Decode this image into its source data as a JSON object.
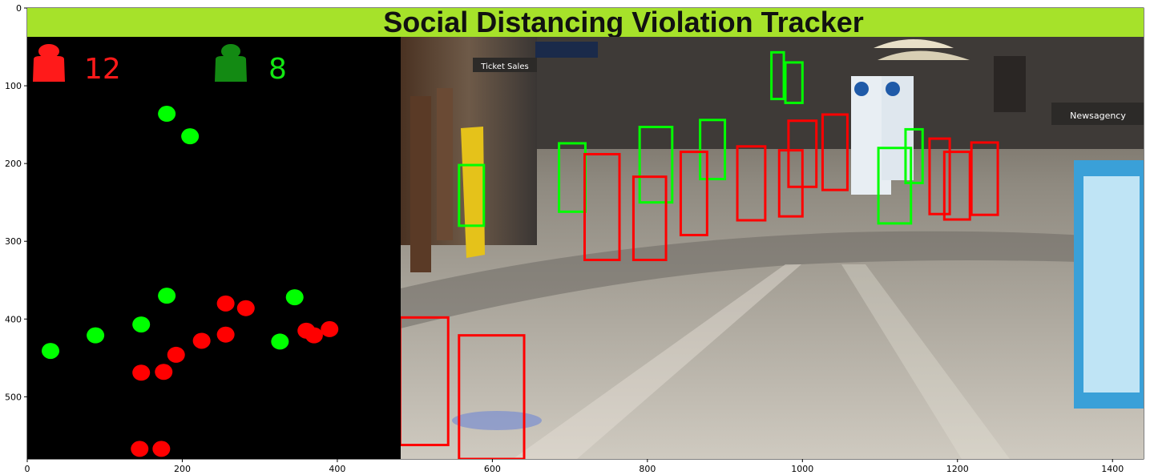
{
  "banner": {
    "title": "Social Distancing Violation Tracker",
    "color": "#a6e22a"
  },
  "counters": {
    "violations": {
      "value": "12",
      "color": "#ff1a1a",
      "icon": "person-red-icon"
    },
    "safe": {
      "value": "8",
      "color": "#13e713",
      "icon": "person-green-icon",
      "icon_color": "#138a13"
    }
  },
  "colors": {
    "violation": "#ff0000",
    "safe": "#00ff00",
    "map_bg": "#000000"
  },
  "axes": {
    "x_ticks": [
      "0",
      "200",
      "400",
      "600",
      "800",
      "1000",
      "1200",
      "1400"
    ],
    "y_ticks": [
      "0",
      "100",
      "200",
      "300",
      "400",
      "500"
    ]
  },
  "map_points": {
    "safe": [
      [
        180,
        136
      ],
      [
        210,
        165
      ],
      [
        180,
        370
      ],
      [
        345,
        372
      ],
      [
        147,
        407
      ],
      [
        88,
        421
      ],
      [
        30,
        441
      ],
      [
        326,
        429
      ]
    ],
    "violation": [
      [
        256,
        380
      ],
      [
        282,
        386
      ],
      [
        360,
        415
      ],
      [
        370,
        421
      ],
      [
        390,
        413
      ],
      [
        256,
        420
      ],
      [
        225,
        428
      ],
      [
        192,
        446
      ],
      [
        147,
        469
      ],
      [
        176,
        468
      ],
      [
        145,
        567
      ],
      [
        173,
        567
      ]
    ]
  },
  "detections": {
    "safe": [
      [
        557,
        202,
        589,
        280
      ],
      [
        686,
        174,
        720,
        262
      ],
      [
        790,
        153,
        832,
        250
      ],
      [
        868,
        144,
        900,
        220
      ],
      [
        960,
        57,
        976,
        117
      ],
      [
        978,
        70,
        1000,
        122
      ],
      [
        1098,
        180,
        1140,
        277
      ],
      [
        1133,
        156,
        1155,
        225
      ]
    ],
    "violation": [
      [
        719,
        188,
        764,
        324
      ],
      [
        782,
        217,
        824,
        324
      ],
      [
        843,
        185,
        877,
        292
      ],
      [
        916,
        178,
        952,
        273
      ],
      [
        970,
        183,
        1000,
        268
      ],
      [
        982,
        145,
        1018,
        230
      ],
      [
        1026,
        137,
        1058,
        234
      ],
      [
        1164,
        168,
        1190,
        265
      ],
      [
        1183,
        185,
        1216,
        272
      ],
      [
        1218,
        173,
        1252,
        266
      ],
      [
        481,
        398,
        543,
        562
      ],
      [
        557,
        421,
        641,
        580
      ]
    ]
  }
}
